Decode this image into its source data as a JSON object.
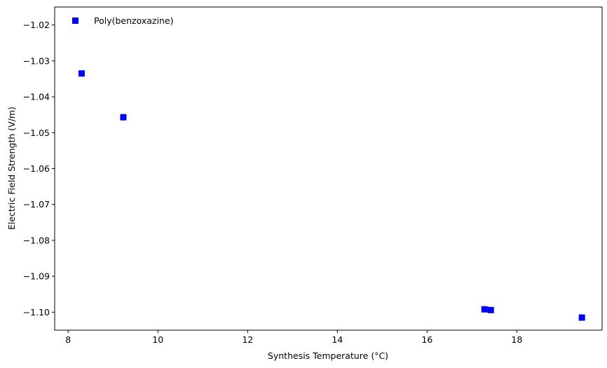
{
  "chart_data": {
    "type": "scatter",
    "title": "",
    "xlabel": "Synthesis Temperature (°C)",
    "ylabel": "Electric Field Strength (V/m)",
    "xlim": [
      7.7,
      19.9
    ],
    "ylim": [
      -1.105,
      -1.015
    ],
    "xticks": [
      8,
      10,
      12,
      14,
      16,
      18
    ],
    "xtick_labels": [
      "8",
      "10",
      "12",
      "14",
      "16",
      "18"
    ],
    "yticks": [
      -1.02,
      -1.03,
      -1.04,
      -1.05,
      -1.06,
      -1.07,
      -1.08,
      -1.09,
      -1.1
    ],
    "ytick_labels": [
      "−1.02",
      "−1.03",
      "−1.04",
      "−1.05",
      "−1.06",
      "−1.07",
      "−1.08",
      "−1.09",
      "−1.10"
    ],
    "grid": false,
    "legend_position": "top-left",
    "series": [
      {
        "name": "Poly(benzoxazine)",
        "marker": "square",
        "color": "#0000ff",
        "points": [
          {
            "x": 8.3,
            "y": -1.0335
          },
          {
            "x": 9.23,
            "y": -1.0457
          },
          {
            "x": 17.28,
            "y": -1.0992
          },
          {
            "x": 17.42,
            "y": -1.0994
          },
          {
            "x": 19.45,
            "y": -1.1015
          }
        ]
      }
    ]
  }
}
